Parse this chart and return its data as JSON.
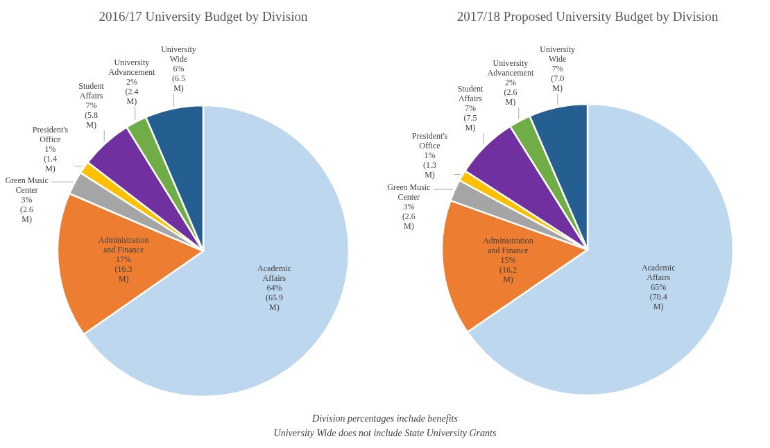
{
  "chart_data": [
    {
      "type": "pie",
      "title": "2016/17 University Budget by Division",
      "categories": [
        "Academic Affairs",
        "Administration and Finance",
        "Green Music Center",
        "President's Office",
        "Student Affairs",
        "University Advancement",
        "University Wide"
      ],
      "values": [
        65.9,
        16.3,
        2.6,
        1.4,
        5.8,
        2.4,
        6.5
      ],
      "value_labels": [
        "64% (65.9 M)",
        "17% (16.3 M)",
        "3% (2.6 M)",
        "1% (1.4 M)",
        "7% (5.8 M)",
        "2% (2.4 M)",
        "6% (6.5 M)"
      ],
      "colors": [
        "#bdd7ee",
        "#ed7d31",
        "#a5a5a5",
        "#ffc000",
        "#7030a0",
        "#70ad47",
        "#255e91"
      ]
    },
    {
      "type": "pie",
      "title": "2017/18 Proposed University Budget by Division",
      "categories": [
        "Academic Affairs",
        "Administration and Finance",
        "Green Music Center",
        "President's Office",
        "Student Affairs",
        "University Advancement",
        "University Wide"
      ],
      "values": [
        70.4,
        16.2,
        2.6,
        1.3,
        7.5,
        2.6,
        7.0
      ],
      "value_labels": [
        "65% (70.4 M)",
        "15% (16.2 M)",
        "3% (2.6 M)",
        "1% (1.3 M)",
        "7% (7.5 M)",
        "2% (2.6 M)",
        "7% (7.0 M)"
      ],
      "colors": [
        "#bdd7ee",
        "#ed7d31",
        "#a5a5a5",
        "#ffc000",
        "#7030a0",
        "#70ad47",
        "#255e91"
      ],
      "annotations": [
        "Division percentages include benefits",
        "University Wide does not include State University Grants"
      ]
    }
  ]
}
